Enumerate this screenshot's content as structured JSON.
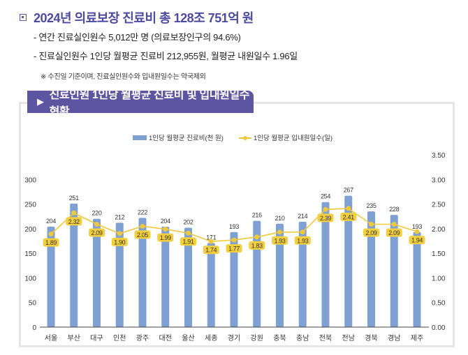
{
  "header": {
    "title": "2024년 의료보장 진료비 총 128조 751억 원",
    "bullets": [
      "- 연간 진료실인원수 5,012만 명 (의료보장인구의 94.6%)",
      "- 진료실인원수 1인당 월평균 진료비 212,955원, 월평균 내원일수 1.96일"
    ],
    "note": "※ 수진일 기준이며, 진료실인원수와 입내원일수는 약국제외"
  },
  "banner": {
    "icon": "play-triangle-icon",
    "title": "진료인원 1인당 월평균 진료비 및 입내원일수 현황"
  },
  "colors": {
    "bar": "#7fa0d2",
    "line": "#f0c93a",
    "label_bg": "#f2cf3f",
    "accent": "#5e55a0"
  },
  "chart_data": {
    "type": "bar",
    "title": "진료인원 1인당 월평균 진료비 및 입내원일수 현황",
    "categories": [
      "서울",
      "부산",
      "대구",
      "인천",
      "광주",
      "대전",
      "울산",
      "세종",
      "경기",
      "강원",
      "충북",
      "충남",
      "전북",
      "전남",
      "경북",
      "경남",
      "제주"
    ],
    "series": [
      {
        "name": "1인당 월평균 진료비(천 원)",
        "type": "bar",
        "axis": "left",
        "values": [
          204,
          251,
          220,
          212,
          222,
          204,
          202,
          171,
          193,
          216,
          210,
          214,
          254,
          267,
          235,
          228,
          193
        ]
      },
      {
        "name": "1인당 월평균 입내원일수(일)",
        "type": "line",
        "axis": "right",
        "values": [
          1.89,
          2.32,
          2.09,
          1.9,
          2.05,
          1.99,
          1.91,
          1.74,
          1.77,
          1.83,
          1.93,
          1.93,
          2.39,
          2.41,
          2.09,
          2.09,
          1.94
        ]
      }
    ],
    "left_axis": {
      "min": 0,
      "max": 350,
      "ticks": [
        "0",
        "50",
        "100",
        "150",
        "200",
        "250",
        "300"
      ]
    },
    "right_axis": {
      "min": 0,
      "max": 3.5,
      "ticks": [
        "0.00",
        "0.50",
        "1.00",
        "1.50",
        "2.00",
        "2.50",
        "3.00",
        "3.50"
      ]
    },
    "legend": {
      "position": "top-center",
      "entries": [
        "1인당 월평균 진료비(천 원)",
        "1인당 월평균 입내원일수(일)"
      ]
    },
    "grid": false
  }
}
